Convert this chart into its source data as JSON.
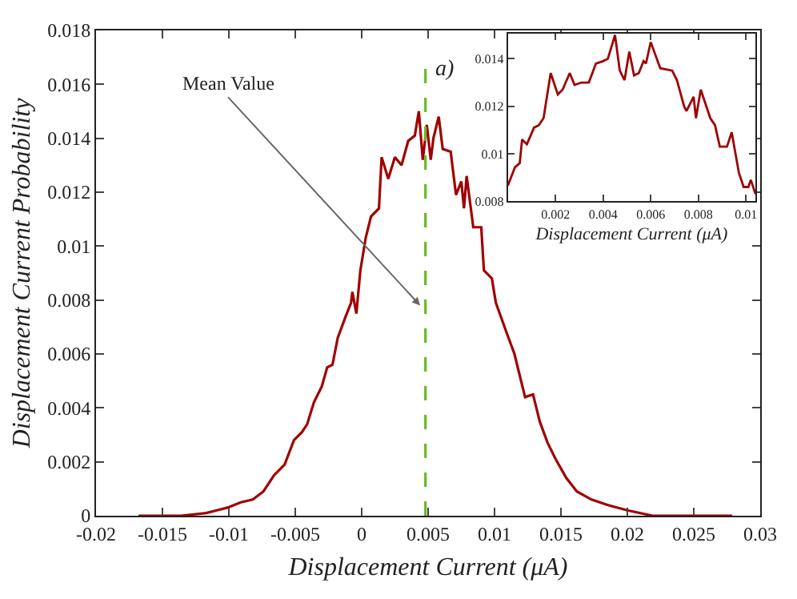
{
  "chart_data": [
    {
      "type": "line",
      "xlabel": "Displacement Current (μA)",
      "ylabel": "Displacement Current Probability",
      "xlim": [
        -0.02,
        0.03
      ],
      "xticks": [
        -0.02,
        -0.015,
        -0.01,
        -0.005,
        0,
        0.005,
        0.01,
        0.015,
        0.02,
        0.025,
        0.03
      ],
      "ylim": [
        0,
        0.018
      ],
      "yticks": [
        0,
        0.002,
        0.004,
        0.006,
        0.008,
        0.01,
        0.012,
        0.014,
        0.016,
        0.018
      ],
      "marker": "none",
      "line_style": "solid",
      "series": [
        {
          "color": "#a00000",
          "x": [
            -0.0168,
            -0.0136,
            -0.0117,
            -0.0109,
            -0.0101,
            -0.0091,
            -0.0082,
            -0.0074,
            -0.0066,
            -0.0058,
            -0.0051,
            -0.0045,
            -0.0041,
            -0.0036,
            -0.003,
            -0.0026,
            -0.0022,
            -0.0018,
            -0.0012,
            -0.0008,
            -0.0007,
            -0.0004,
            -0.0001,
            0.0003,
            0.0007,
            0.0013,
            0.0015,
            0.002,
            0.0025,
            0.003,
            0.0035,
            0.004,
            0.0043,
            0.0046,
            0.0049,
            0.0052,
            0.0054,
            0.0058,
            0.0061,
            0.0067,
            0.0071,
            0.0075,
            0.0077,
            0.0079,
            0.0084,
            0.009,
            0.0092,
            0.0098,
            0.0101,
            0.0109,
            0.0115,
            0.0123,
            0.0129,
            0.0134,
            0.014,
            0.0146,
            0.0154,
            0.0162,
            0.0173,
            0.0185,
            0.02,
            0.0219,
            0.0239,
            0.0279
          ],
          "values": [
            0,
            0,
            0.0001,
            0.0002,
            0.0003,
            0.0005,
            0.0006,
            0.0009,
            0.0015,
            0.0019,
            0.0028,
            0.0031,
            0.0034,
            0.0042,
            0.0048,
            0.0055,
            0.0056,
            0.0066,
            0.0074,
            0.0079,
            0.0083,
            0.0075,
            0.0091,
            0.0103,
            0.0111,
            0.0114,
            0.0133,
            0.0125,
            0.0133,
            0.013,
            0.0139,
            0.0141,
            0.015,
            0.0132,
            0.0145,
            0.0132,
            0.014,
            0.0148,
            0.0136,
            0.0135,
            0.0119,
            0.0124,
            0.0114,
            0.0126,
            0.0107,
            0.0107,
            0.0091,
            0.0088,
            0.0079,
            0.0068,
            0.006,
            0.0044,
            0.0045,
            0.0035,
            0.0027,
            0.0021,
            0.0014,
            0.0009,
            0.0006,
            0.0004,
            0.0002,
            0,
            0,
            0
          ]
        }
      ],
      "ref_lines": [
        {
          "axis": "x",
          "value": 0.0048,
          "label": null,
          "color": "#66bb22",
          "line_style": "dashed"
        }
      ],
      "annotations": [
        {
          "text": "Mean Value",
          "x": 0.0044,
          "y": 0.0078
        },
        "a)"
      ]
    },
    {
      "type": "line",
      "xlabel": "Displacement Current (μA)",
      "xlim": [
        0,
        0.0104
      ],
      "xticks": [
        0.002,
        0.004,
        0.006,
        0.008,
        0.01
      ],
      "ylim": [
        0.008,
        0.01505
      ],
      "yticks": [
        0.008,
        0.01,
        0.012,
        0.014
      ],
      "marker": "none",
      "line_style": "solid",
      "series": [
        {
          "color": "#a00000",
          "x": [
            0,
            0.0003,
            0.0005,
            0.0006,
            0.0008,
            0.0011,
            0.0013,
            0.0015,
            0.0018,
            0.0021,
            0.0023,
            0.0026,
            0.0028,
            0.0031,
            0.0034,
            0.0037,
            0.004,
            0.0042,
            0.0045,
            0.0047,
            0.0049,
            0.0051,
            0.0053,
            0.0055,
            0.0057,
            0.0058,
            0.006,
            0.0064,
            0.0069,
            0.0071,
            0.0074,
            0.0075,
            0.0078,
            0.0079,
            0.0081,
            0.0085,
            0.0087,
            0.0089,
            0.0092,
            0.0094,
            0.0097,
            0.0099,
            0.0101,
            0.0102,
            0.0104
          ],
          "values": [
            0.00866,
            0.00943,
            0.0096,
            0.0106,
            0.0104,
            0.0111,
            0.0112,
            0.0115,
            0.0134,
            0.0125,
            0.0127,
            0.0134,
            0.0129,
            0.013,
            0.013,
            0.0138,
            0.0139,
            0.014,
            0.015,
            0.0135,
            0.0131,
            0.0143,
            0.0133,
            0.0134,
            0.0139,
            0.0138,
            0.0147,
            0.0136,
            0.0135,
            0.0131,
            0.012,
            0.0118,
            0.0124,
            0.0115,
            0.0127,
            0.0115,
            0.0112,
            0.0103,
            0.0103,
            0.0109,
            0.0092,
            0.0086,
            0.0086,
            0.0089,
            0.0083
          ]
        }
      ]
    }
  ]
}
